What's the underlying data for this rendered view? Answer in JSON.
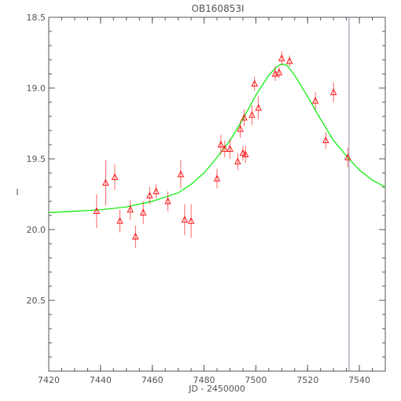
{
  "chart_data": {
    "type": "scatter",
    "title": "OB160853I",
    "xlabel": "JD - 2450000",
    "ylabel": "I",
    "xlim": [
      7420,
      7550
    ],
    "ylim": [
      18.5,
      21.0
    ],
    "y_inverted": true,
    "grid": false,
    "x_ticks": [
      7420,
      7440,
      7460,
      7480,
      7500,
      7520,
      7540
    ],
    "y_ticks": [
      18.5,
      19.0,
      19.5,
      20.0,
      20.5
    ],
    "y_tick_labels": [
      "18.5",
      "19.0",
      "19.5",
      "20.0",
      "20.5"
    ],
    "vertical_marker_x": 7536,
    "colors": {
      "points": "#ff0000",
      "model": "#00ee00",
      "marker_line": "#8c8ca8",
      "axes": "#555555"
    },
    "series": [
      {
        "kind": "points_with_errorbars",
        "x": [
          7438.5,
          7442,
          7445.5,
          7447.5,
          7451.5,
          7453.5,
          7456.5,
          7459,
          7461.5,
          7466,
          7471,
          7472.5,
          7475,
          7485,
          7486.5,
          7488,
          7490,
          7493,
          7494,
          7495,
          7495.5,
          7496,
          7498.5,
          7499.5,
          7501,
          7507.5,
          7509,
          7510,
          7513,
          7523,
          7527,
          7530,
          7535.5
        ],
        "y": [
          19.87,
          19.67,
          19.63,
          19.94,
          19.86,
          20.05,
          19.88,
          19.76,
          19.73,
          19.8,
          19.61,
          19.93,
          19.94,
          19.64,
          19.4,
          19.43,
          19.43,
          19.52,
          19.29,
          19.46,
          19.21,
          19.47,
          19.19,
          18.97,
          19.14,
          18.9,
          18.89,
          18.79,
          18.81,
          19.09,
          19.37,
          19.03,
          19.49
        ],
        "err": [
          0.12,
          0.16,
          0.09,
          0.08,
          0.07,
          0.08,
          0.08,
          0.06,
          0.05,
          0.07,
          0.1,
          0.11,
          0.12,
          0.07,
          0.07,
          0.06,
          0.07,
          0.06,
          0.06,
          0.05,
          0.06,
          0.06,
          0.07,
          0.05,
          0.08,
          0.05,
          0.04,
          0.05,
          0.04,
          0.06,
          0.06,
          0.07,
          0.07
        ]
      },
      {
        "kind": "model_curve",
        "x": [
          7420,
          7430,
          7440,
          7450,
          7460,
          7470,
          7475,
          7480,
          7485,
          7490,
          7495,
          7500,
          7505,
          7508,
          7510,
          7512,
          7515,
          7520,
          7525,
          7530,
          7535,
          7540,
          7545,
          7550
        ],
        "y": [
          19.88,
          19.87,
          19.86,
          19.84,
          19.8,
          19.74,
          19.68,
          19.6,
          19.49,
          19.37,
          19.22,
          19.05,
          18.91,
          18.85,
          18.83,
          18.84,
          18.91,
          19.06,
          19.22,
          19.37,
          19.48,
          19.58,
          19.65,
          19.7
        ]
      }
    ]
  }
}
